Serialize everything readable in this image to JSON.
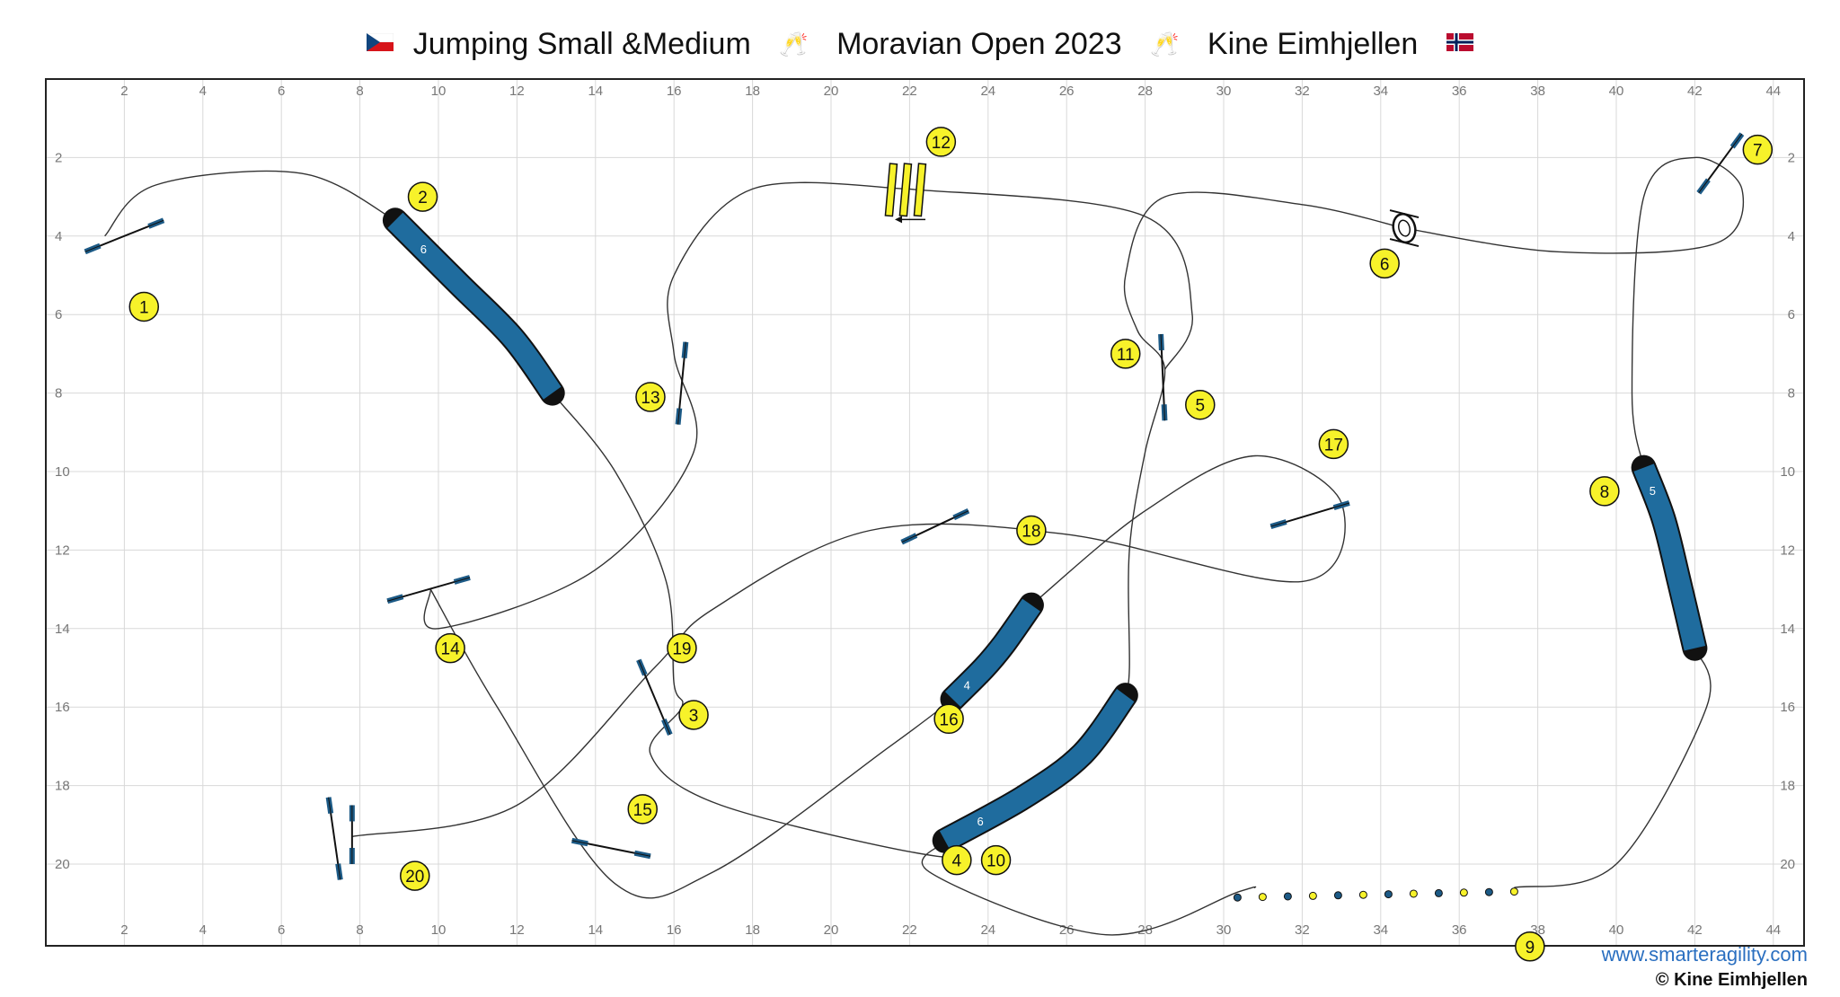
{
  "header": {
    "flag_left": "cz-flag",
    "part1": "Jumping Small &Medium",
    "glasses1": "🥂",
    "part2": "Moravian Open 2023",
    "glasses2": "🥂",
    "part3": "Kine Eimhjellen",
    "flag_right": "no-flag"
  },
  "axis": {
    "x_ticks": [
      "2",
      "4",
      "6",
      "8",
      "10",
      "12",
      "14",
      "16",
      "18",
      "20",
      "22",
      "24",
      "26",
      "28",
      "30",
      "32",
      "34",
      "36",
      "38",
      "40",
      "42",
      "44"
    ],
    "y_ticks": [
      "2",
      "4",
      "6",
      "8",
      "10",
      "12",
      "14",
      "16",
      "18",
      "20"
    ]
  },
  "colors": {
    "tunnel": "#1f6c9e",
    "marker": "#f7f22a",
    "bar": "#1c5a86",
    "path": "#333333"
  },
  "tunnels": [
    {
      "label": "6",
      "pts": [
        [
          8.9,
          3.6
        ],
        [
          10.5,
          5.2
        ],
        [
          11.9,
          6.6
        ],
        [
          12.9,
          8.0
        ]
      ]
    },
    {
      "label": "5",
      "pts": [
        [
          40.7,
          9.9
        ],
        [
          41.2,
          11.2
        ],
        [
          41.6,
          12.8
        ],
        [
          42.0,
          14.5
        ]
      ]
    },
    {
      "label": "4",
      "pts": [
        [
          23.1,
          15.8
        ],
        [
          23.9,
          15.0
        ],
        [
          24.4,
          14.4
        ],
        [
          25.1,
          13.4
        ]
      ]
    },
    {
      "label": "6",
      "pts": [
        [
          22.9,
          19.4
        ],
        [
          24.9,
          18.3
        ],
        [
          26.4,
          17.2
        ],
        [
          27.5,
          15.7
        ]
      ]
    }
  ],
  "jumps": [
    {
      "a": [
        1.0,
        4.4
      ],
      "b": [
        3.0,
        3.6
      ]
    },
    {
      "a": [
        16.3,
        6.7
      ],
      "b": [
        16.1,
        8.8
      ]
    },
    {
      "a": [
        28.4,
        6.5
      ],
      "b": [
        28.5,
        8.7
      ]
    },
    {
      "a": [
        42.1,
        2.9
      ],
      "b": [
        43.2,
        1.4
      ]
    },
    {
      "a": [
        21.8,
        11.8
      ],
      "b": [
        23.5,
        11.0
      ]
    },
    {
      "a": [
        31.2,
        11.4
      ],
      "b": [
        33.2,
        10.8
      ]
    },
    {
      "a": [
        8.7,
        13.3
      ],
      "b": [
        10.8,
        12.7
      ]
    },
    {
      "a": [
        15.1,
        14.8
      ],
      "b": [
        15.9,
        16.7
      ]
    },
    {
      "a": [
        13.4,
        19.4
      ],
      "b": [
        15.4,
        19.8
      ]
    },
    {
      "a": [
        7.2,
        18.3
      ],
      "b": [
        7.5,
        20.4
      ]
    }
  ],
  "spread": {
    "a": [
      7.8,
      18.5
    ],
    "b": [
      7.8,
      20.0
    ]
  },
  "tire": {
    "x": 34.6,
    "y": 3.8
  },
  "weave": {
    "x": 37.4,
    "y": 20.7,
    "count": 12
  },
  "table": {
    "x": 21.9,
    "y": 2.8
  },
  "numbers": [
    {
      "n": "1",
      "x": 2.5,
      "y": 5.8
    },
    {
      "n": "2",
      "x": 9.6,
      "y": 3.0
    },
    {
      "n": "3",
      "x": 16.5,
      "y": 16.2
    },
    {
      "n": "4",
      "x": 23.2,
      "y": 19.9
    },
    {
      "n": "5",
      "x": 29.4,
      "y": 8.3
    },
    {
      "n": "6",
      "x": 34.1,
      "y": 4.7
    },
    {
      "n": "7",
      "x": 43.6,
      "y": 1.8
    },
    {
      "n": "8",
      "x": 39.7,
      "y": 10.5
    },
    {
      "n": "9",
      "x": 37.8,
      "y": 22.1
    },
    {
      "n": "10",
      "x": 24.2,
      "y": 19.9
    },
    {
      "n": "11",
      "x": 27.5,
      "y": 7.0
    },
    {
      "n": "12",
      "x": 22.8,
      "y": 1.6
    },
    {
      "n": "13",
      "x": 15.4,
      "y": 8.1
    },
    {
      "n": "14",
      "x": 10.3,
      "y": 14.5
    },
    {
      "n": "15",
      "x": 15.2,
      "y": 18.6
    },
    {
      "n": "16",
      "x": 23.0,
      "y": 16.3
    },
    {
      "n": "17",
      "x": 32.8,
      "y": 9.3
    },
    {
      "n": "18",
      "x": 25.1,
      "y": 11.5
    },
    {
      "n": "19",
      "x": 16.2,
      "y": 14.5
    },
    {
      "n": "20",
      "x": 9.4,
      "y": 20.3
    }
  ],
  "paths": [
    [
      [
        1.5,
        4.0
      ],
      [
        2.8,
        2.7
      ],
      [
        6.5,
        2.4
      ],
      [
        8.9,
        3.6
      ]
    ],
    [
      [
        12.9,
        8.0
      ],
      [
        14.5,
        10.0
      ],
      [
        15.8,
        12.8
      ],
      [
        16.0,
        15.4
      ],
      [
        16.2,
        16.0
      ],
      [
        15.4,
        17.2
      ],
      [
        17.2,
        18.5
      ],
      [
        22.7,
        19.8
      ],
      [
        23.2,
        19.3
      ]
    ],
    [
      [
        23.2,
        19.3
      ],
      [
        22.5,
        20.2
      ],
      [
        27.0,
        21.8
      ],
      [
        30.4,
        20.7
      ],
      [
        30.8,
        20.6
      ]
    ],
    [
      [
        37.4,
        20.6
      ],
      [
        40.0,
        20.0
      ],
      [
        42.3,
        16.0
      ],
      [
        42.0,
        14.5
      ]
    ],
    [
      [
        40.7,
        9.9
      ],
      [
        40.4,
        8.0
      ],
      [
        40.7,
        3.0
      ],
      [
        42.0,
        2.0
      ],
      [
        43.2,
        2.8
      ],
      [
        42.5,
        4.2
      ],
      [
        38.5,
        4.4
      ],
      [
        34.6,
        3.8
      ]
    ],
    [
      [
        34.6,
        3.8
      ],
      [
        32.0,
        3.2
      ],
      [
        28.5,
        3.0
      ],
      [
        27.5,
        5.0
      ],
      [
        27.8,
        6.4
      ],
      [
        28.5,
        7.4
      ],
      [
        28.0,
        9.5
      ],
      [
        27.6,
        12.0
      ],
      [
        27.6,
        15.0
      ],
      [
        27.5,
        15.7
      ]
    ],
    [
      [
        28.5,
        7.4
      ],
      [
        29.2,
        6.0
      ],
      [
        28.0,
        3.5
      ],
      [
        22.0,
        2.8
      ]
    ],
    [
      [
        22.0,
        2.8
      ],
      [
        18.0,
        2.8
      ],
      [
        16.0,
        5.0
      ],
      [
        16.0,
        7.0
      ],
      [
        16.5,
        9.5
      ],
      [
        14.0,
        12.5
      ],
      [
        10.0,
        14.0
      ],
      [
        9.8,
        13.0
      ]
    ],
    [
      [
        9.8,
        13.0
      ],
      [
        11.5,
        16.0
      ],
      [
        14.5,
        20.5
      ],
      [
        17.0,
        20.2
      ],
      [
        21.5,
        17.0
      ],
      [
        23.1,
        15.8
      ]
    ],
    [
      [
        25.1,
        13.4
      ],
      [
        28.0,
        11.0
      ],
      [
        30.8,
        9.6
      ],
      [
        33.0,
        10.8
      ],
      [
        32.0,
        12.8
      ],
      [
        26.0,
        11.6
      ],
      [
        21.0,
        11.5
      ],
      [
        17.0,
        13.5
      ],
      [
        15.5,
        15.0
      ],
      [
        12.0,
        18.5
      ],
      [
        7.8,
        19.3
      ]
    ]
  ],
  "credits": {
    "website": "www.smarteragility.com",
    "copyright": "© Kine Eimhjellen"
  }
}
